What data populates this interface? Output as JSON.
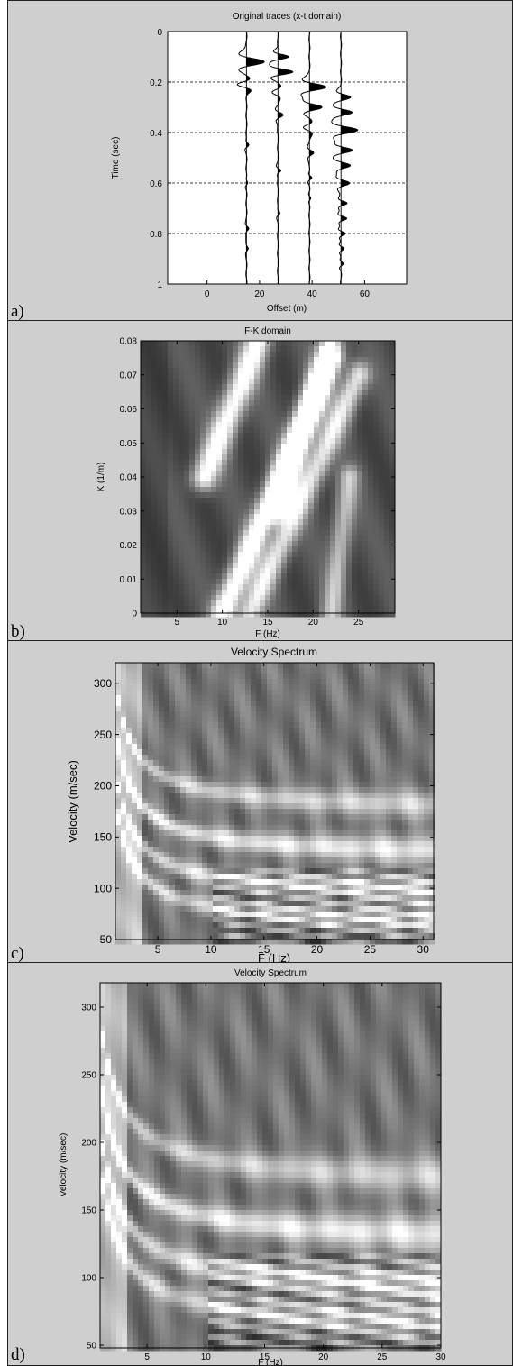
{
  "panels": [
    {
      "label": "a)",
      "chart_data": {
        "type": "line",
        "title": "Original traces (x-t domain)",
        "xlabel": "Offset (m)",
        "ylabel": "Time (sec)",
        "xlim": [
          -15,
          76
        ],
        "ylim": [
          1,
          0
        ],
        "yreversed": true,
        "xticks": [
          0,
          20,
          40,
          60
        ],
        "yticks": [
          0,
          0.2,
          0.4,
          0.6,
          0.8,
          1
        ],
        "ytick_labels": [
          "0",
          "0.2",
          "0.4",
          "0.6",
          "0.8",
          "1"
        ],
        "grid_y": [
          0.2,
          0.4,
          0.6,
          0.8
        ],
        "trace_offsets": [
          15,
          27,
          39,
          51
        ],
        "trace_scale_m": 7,
        "series": [
          {
            "offset": 15,
            "events": [
              {
                "t": 0.12,
                "amp": 1.0,
                "w": 0.026
              },
              {
                "t": 0.21,
                "amp": -0.5,
                "w": 0.02
              },
              {
                "t": 0.45,
                "amp": 0.12,
                "w": 0.015
              },
              {
                "t": 0.6,
                "amp": 0.08,
                "w": 0.015
              },
              {
                "t": 0.78,
                "amp": 0.1,
                "w": 0.015
              },
              {
                "t": 0.86,
                "amp": 0.07,
                "w": 0.015
              }
            ]
          },
          {
            "offset": 27,
            "events": [
              {
                "t": 0.1,
                "amp": 0.6,
                "w": 0.018
              },
              {
                "t": 0.16,
                "amp": 0.8,
                "w": 0.02
              },
              {
                "t": 0.24,
                "amp": -0.3,
                "w": 0.02
              },
              {
                "t": 0.33,
                "amp": 0.3,
                "w": 0.02
              },
              {
                "t": 0.55,
                "amp": 0.15,
                "w": 0.015
              },
              {
                "t": 0.72,
                "amp": 0.1,
                "w": 0.015
              }
            ]
          },
          {
            "offset": 39,
            "events": [
              {
                "t": 0.22,
                "amp": 0.9,
                "w": 0.024
              },
              {
                "t": 0.3,
                "amp": 0.7,
                "w": 0.022
              },
              {
                "t": 0.38,
                "amp": -0.3,
                "w": 0.02
              },
              {
                "t": 0.48,
                "amp": 0.2,
                "w": 0.018
              },
              {
                "t": 0.58,
                "amp": 0.15,
                "w": 0.015
              },
              {
                "t": 0.66,
                "amp": 0.1,
                "w": 0.015
              }
            ]
          },
          {
            "offset": 51,
            "events": [
              {
                "t": 0.26,
                "amp": 0.5,
                "w": 0.02
              },
              {
                "t": 0.32,
                "amp": 0.6,
                "w": 0.02
              },
              {
                "t": 0.39,
                "amp": 0.9,
                "w": 0.024
              },
              {
                "t": 0.47,
                "amp": 0.6,
                "w": 0.02
              },
              {
                "t": 0.53,
                "amp": 0.5,
                "w": 0.02
              },
              {
                "t": 0.6,
                "amp": 0.45,
                "w": 0.02
              },
              {
                "t": 0.68,
                "amp": 0.3,
                "w": 0.015
              },
              {
                "t": 0.74,
                "amp": 0.3,
                "w": 0.015
              },
              {
                "t": 0.8,
                "amp": 0.25,
                "w": 0.015
              },
              {
                "t": 0.86,
                "amp": 0.2,
                "w": 0.015
              },
              {
                "t": 0.92,
                "amp": 0.15,
                "w": 0.015
              }
            ]
          }
        ]
      }
    },
    {
      "label": "b)",
      "chart_data": {
        "type": "heatmap",
        "title": "F-K domain",
        "xlabel": "F (Hz)",
        "ylabel": "K (1/m)",
        "xlim": [
          1,
          29
        ],
        "ylim": [
          0,
          0.08
        ],
        "xticks": [
          5,
          10,
          15,
          20,
          25
        ],
        "yticks": [
          0,
          0.01,
          0.02,
          0.03,
          0.04,
          0.05,
          0.06,
          0.07,
          0.08
        ],
        "colormap": "gray",
        "ridges": [
          {
            "x1": 10,
            "y1": 0.0,
            "x2": 22,
            "y2": 0.075,
            "amp": 1.0,
            "w": 0.9
          },
          {
            "x1": 13,
            "y1": 0.0,
            "x2": 25,
            "y2": 0.07,
            "amp": 0.75,
            "w": 0.9
          },
          {
            "x1": 8,
            "y1": 0.04,
            "x2": 14,
            "y2": 0.08,
            "amp": 0.9,
            "w": 1.0
          },
          {
            "x1": 16,
            "y1": 0.03,
            "x2": 22,
            "y2": 0.08,
            "amp": 0.7,
            "w": 0.9
          },
          {
            "x1": 22,
            "y1": 0.0,
            "x2": 24,
            "y2": 0.04,
            "amp": 0.55,
            "w": 0.8
          }
        ]
      }
    },
    {
      "label": "c)",
      "chart_data": {
        "type": "heatmap",
        "title": "Velocity Spectrum",
        "xlabel": "F (Hz)",
        "ylabel": "Velocity (m/sec)",
        "xlim": [
          1,
          31
        ],
        "ylim": [
          50,
          320
        ],
        "xticks": [
          5,
          10,
          15,
          20,
          25,
          30
        ],
        "yticks": [
          50,
          100,
          150,
          200,
          250,
          300
        ],
        "colormap": "gray",
        "ridge_curves": [
          {
            "v": 130,
            "amp": 1.0
          },
          {
            "v": 175,
            "amp": 0.8
          },
          {
            "v": 92,
            "amp": 0.9
          },
          {
            "v": 62,
            "amp": 0.85
          }
        ]
      }
    },
    {
      "label": "d)",
      "chart_data": {
        "type": "heatmap",
        "title": "Velocity Spectrum",
        "xlabel": "F (Hz)",
        "ylabel": "Velocity (m/sec)",
        "xlim": [
          1,
          30
        ],
        "ylim": [
          48,
          318
        ],
        "xticks": [
          5,
          10,
          15,
          20,
          25,
          30
        ],
        "yticks": [
          50,
          100,
          150,
          200,
          250,
          300
        ],
        "colormap": "gray",
        "ridge_curves": [
          {
            "v": 125,
            "amp": 1.0
          },
          {
            "v": 168,
            "amp": 0.75
          },
          {
            "v": 88,
            "amp": 0.9
          },
          {
            "v": 60,
            "amp": 0.8
          }
        ]
      }
    }
  ]
}
